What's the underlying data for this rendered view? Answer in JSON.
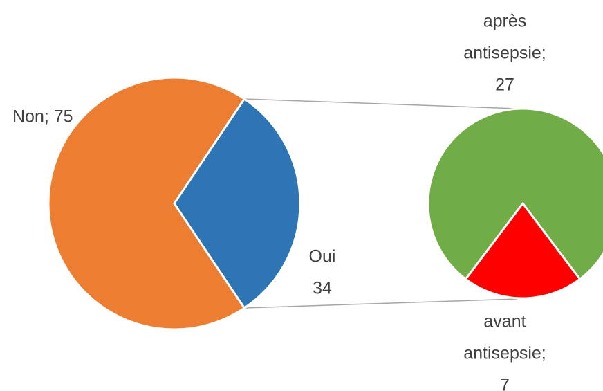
{
  "chart_data": {
    "type": "pie",
    "values": [
      75,
      34
    ],
    "value_labels": [
      [
        "Non; 75"
      ],
      [
        "Oui",
        "34"
      ]
    ],
    "colors": [
      "#ED7D31",
      "#2E75B6"
    ],
    "secondary": {
      "values": [
        27,
        7
      ],
      "value_labels": [
        [
          "après",
          "antisepsie;",
          "27"
        ],
        [
          "avant",
          "antisepsie;",
          "7"
        ]
      ],
      "colors": [
        "#70AD47",
        "#FF0000"
      ]
    }
  }
}
